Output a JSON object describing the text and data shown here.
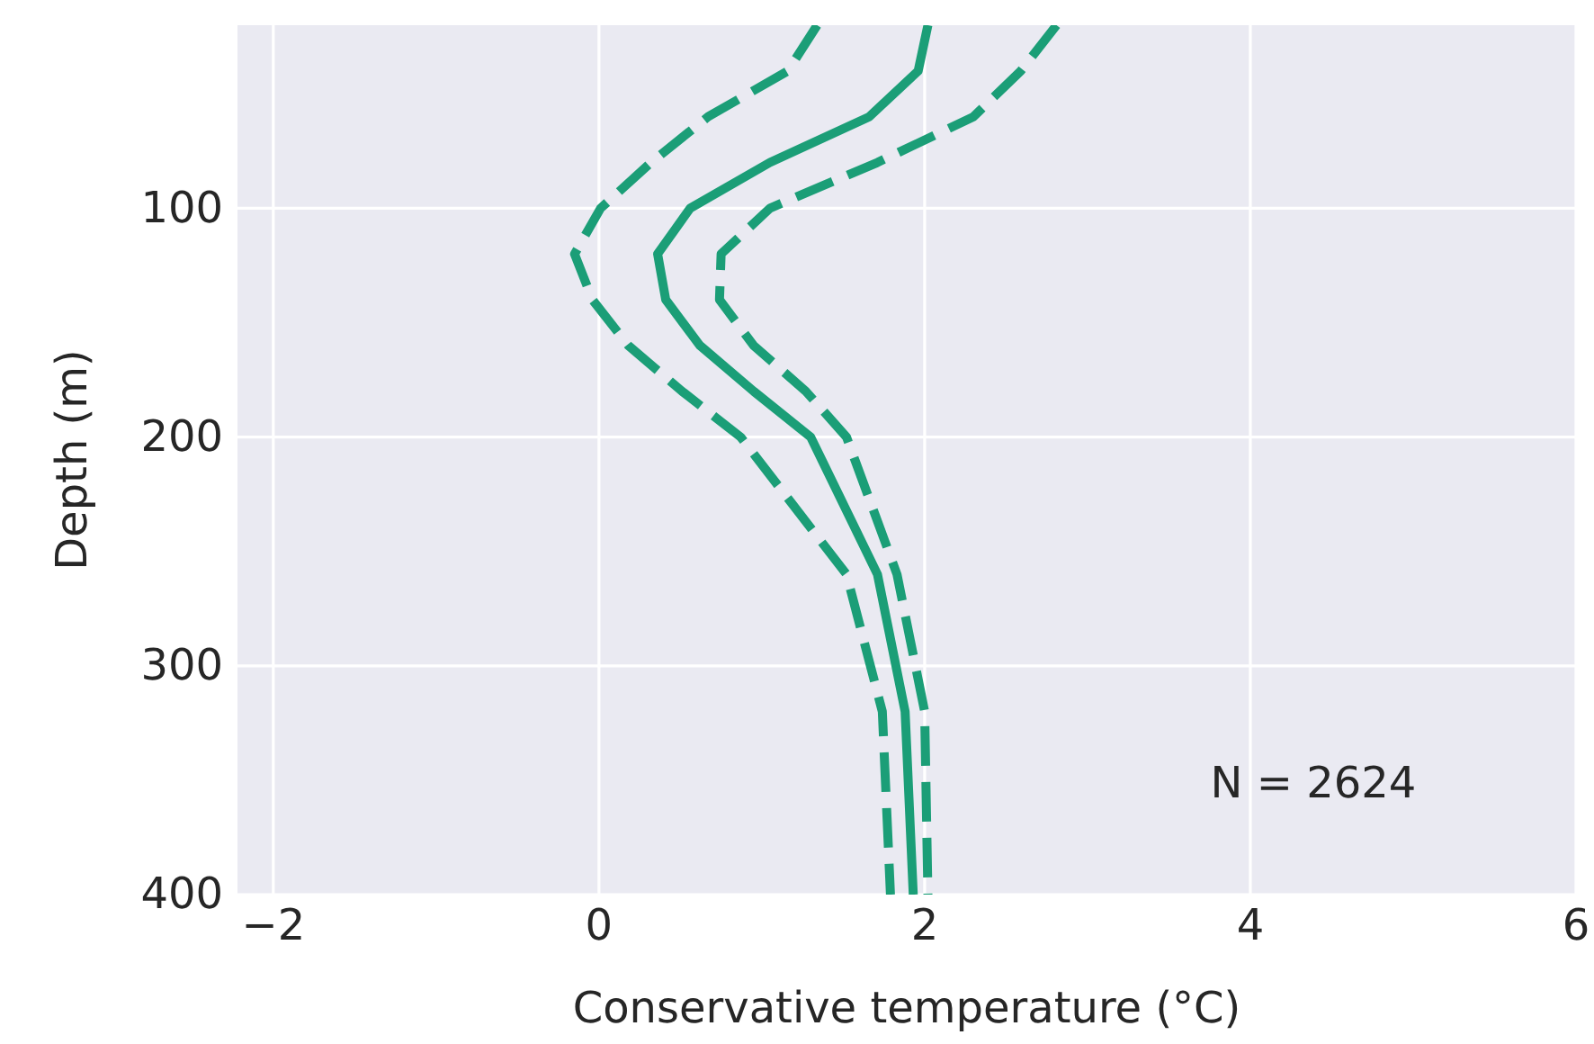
{
  "chart_data": {
    "type": "line",
    "xlabel": "Conservative temperature (°C)",
    "ylabel": "Depth (m)",
    "xlim": [
      -2.22,
      6
    ],
    "xticks": [
      {
        "value": -2,
        "label": "−2"
      },
      0,
      2,
      4,
      6
    ],
    "ylim": [
      400,
      20
    ],
    "yticks": [
      100,
      200,
      300,
      400
    ],
    "grid": true,
    "marker": "none",
    "annotations": [
      "N = 2624"
    ],
    "series": [
      {
        "color": "#1b9e77",
        "line_style": "dashed",
        "x": [
          1.34,
          1.16,
          0.67,
          0.32,
          0.01,
          -0.15,
          -0.04,
          0.18,
          0.51,
          0.87,
          1.52,
          1.74,
          1.79
        ],
        "values": [
          20,
          40,
          60,
          80,
          100,
          120,
          140,
          160,
          180,
          200,
          260,
          320,
          400
        ]
      },
      {
        "color": "#1b9e77",
        "line_style": "solid",
        "x": [
          2.02,
          1.96,
          1.66,
          1.05,
          0.56,
          0.36,
          0.41,
          0.62,
          0.95,
          1.3,
          1.71,
          1.88,
          1.93
        ],
        "values": [
          20,
          40,
          60,
          80,
          100,
          120,
          140,
          160,
          180,
          200,
          260,
          320,
          400
        ]
      },
      {
        "color": "#1b9e77",
        "line_style": "dashed",
        "x": [
          2.81,
          2.59,
          2.3,
          1.71,
          1.05,
          0.75,
          0.74,
          0.95,
          1.27,
          1.52,
          1.83,
          2.0,
          2.02
        ],
        "values": [
          20,
          40,
          60,
          80,
          100,
          120,
          140,
          160,
          180,
          200,
          260,
          320,
          400
        ]
      }
    ]
  }
}
